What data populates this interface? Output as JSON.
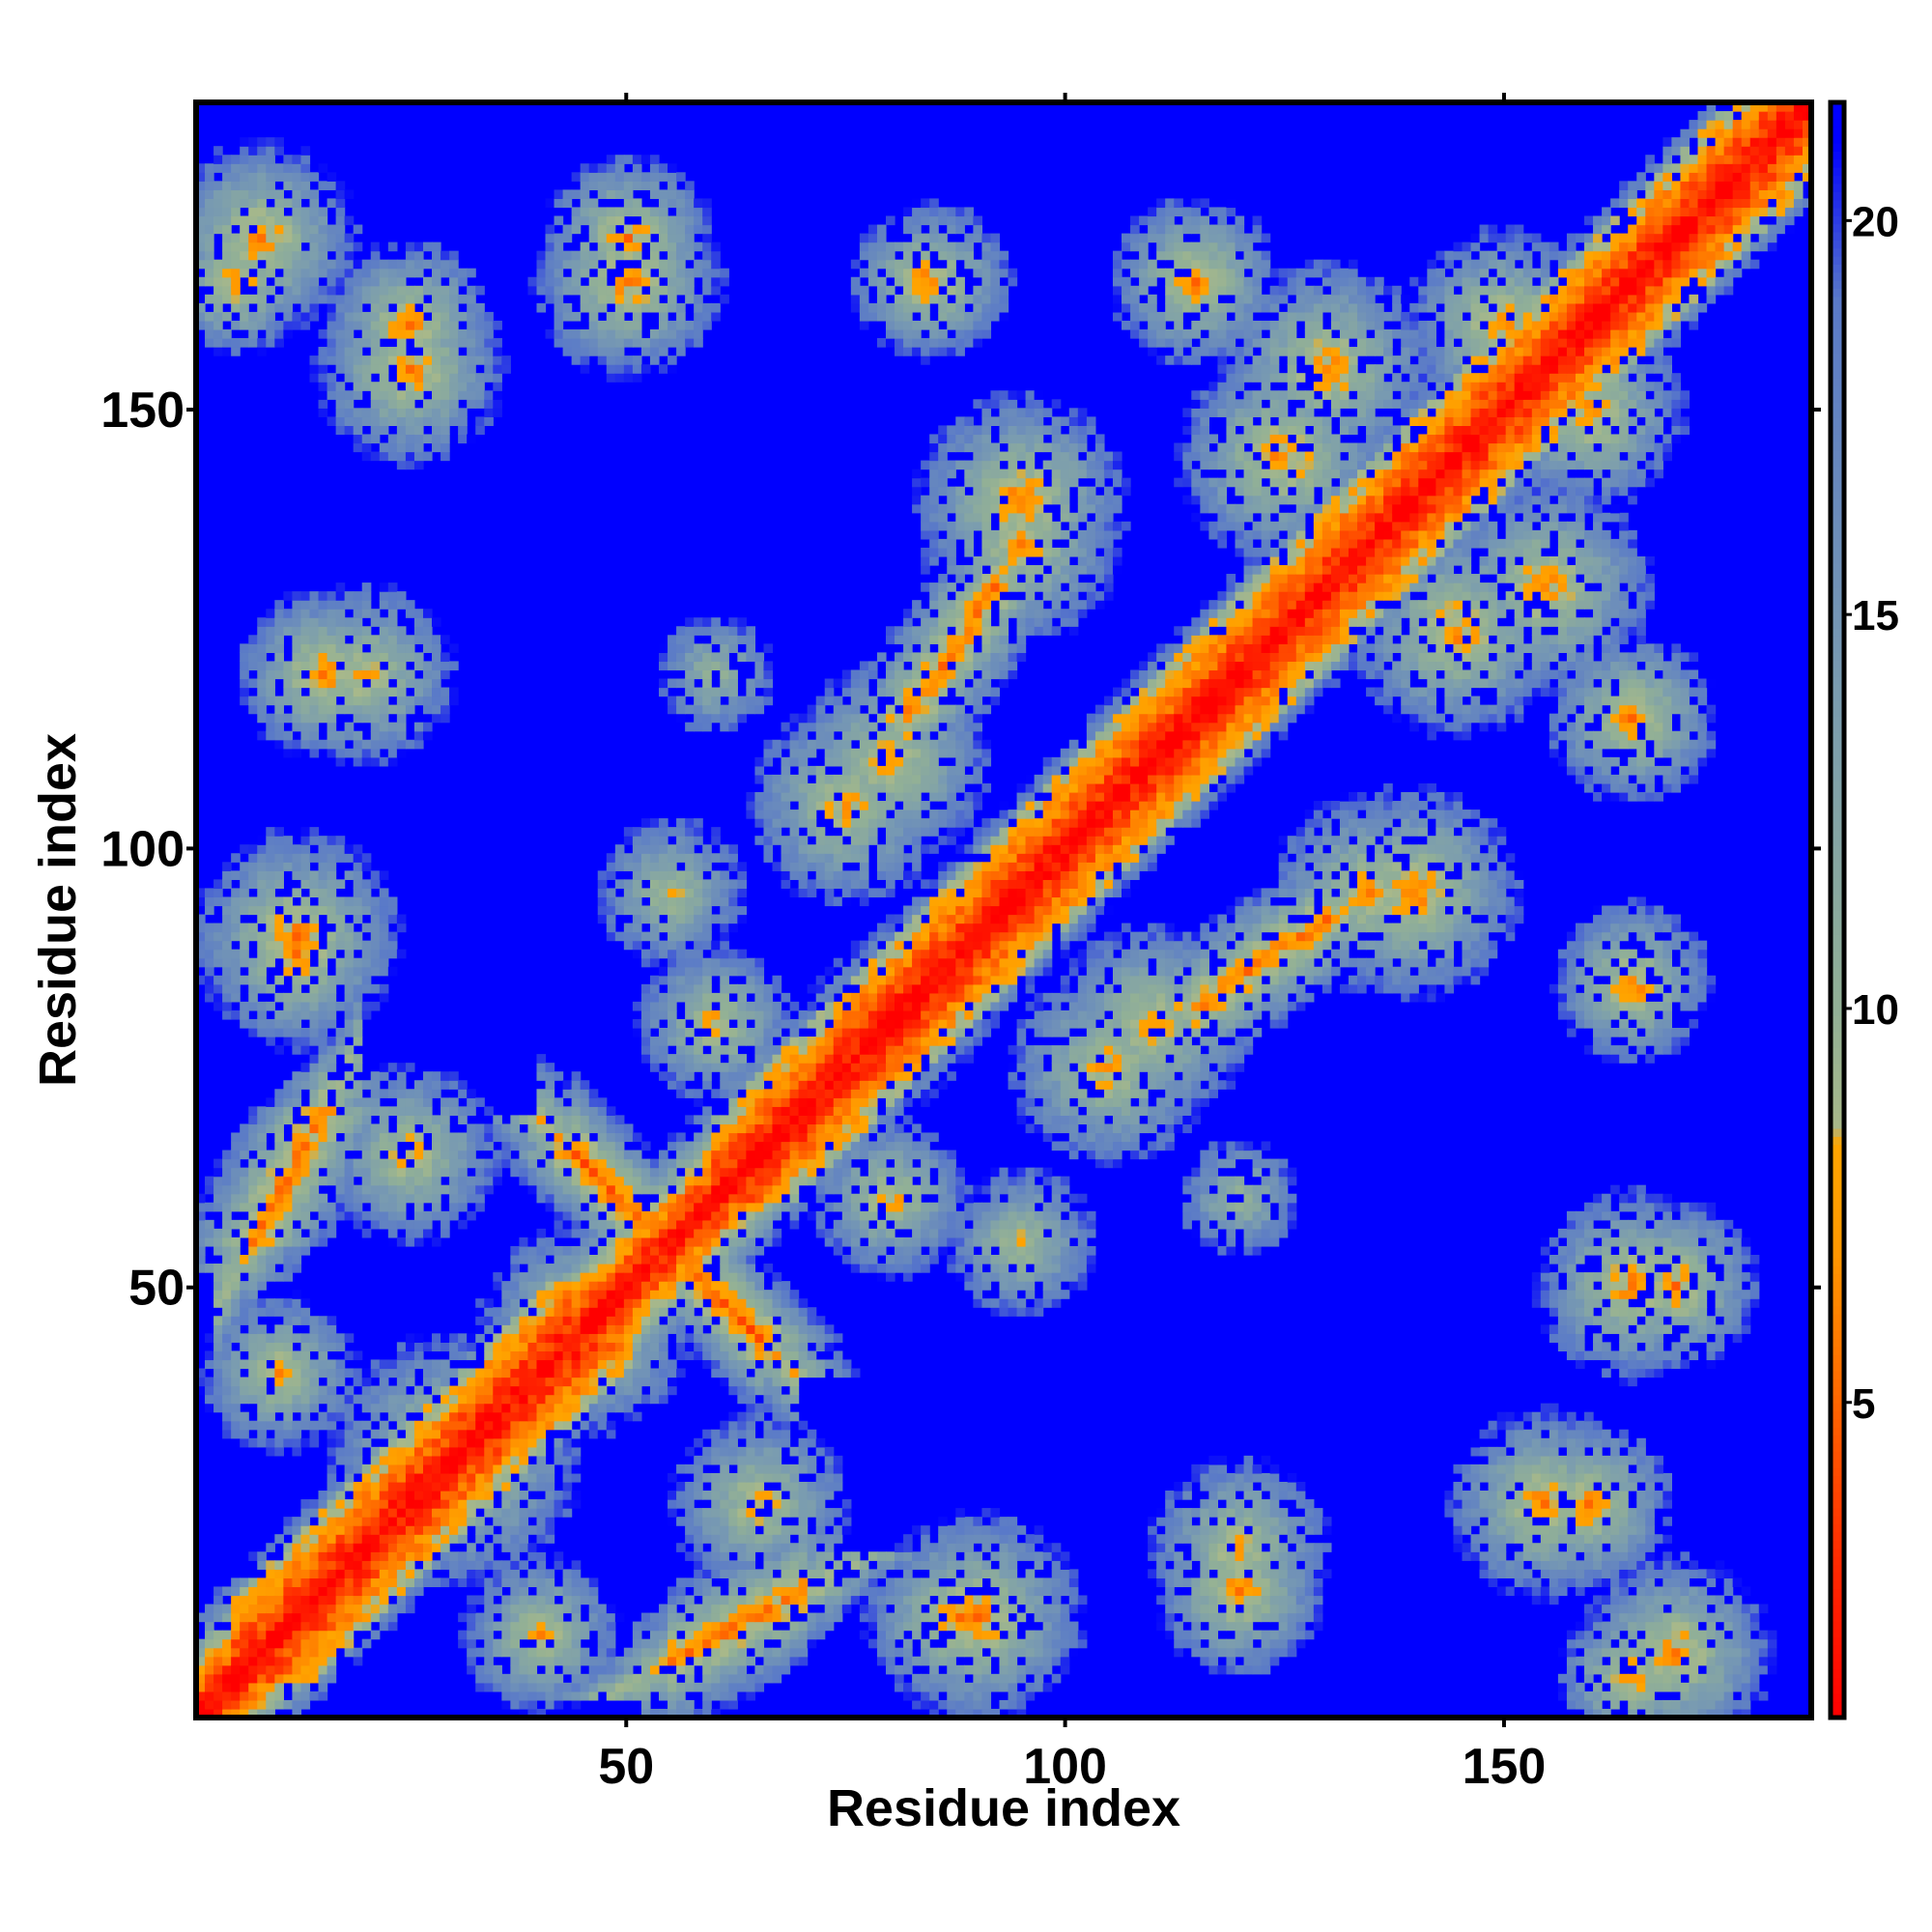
{
  "chart_data": {
    "type": "heatmap",
    "title": "",
    "xlabel": "Residue index",
    "ylabel": "Residue index",
    "n_residues": 185,
    "xlim": [
      1,
      185
    ],
    "ylim": [
      1,
      185
    ],
    "x_ticks": [
      50,
      100,
      150
    ],
    "y_ticks": [
      50,
      100,
      150
    ],
    "x_tick_labels": [
      "50",
      "100",
      "150"
    ],
    "y_tick_labels": [
      "50",
      "100",
      "150"
    ],
    "colorbar": {
      "range": [
        1,
        21.5
      ],
      "ticks": [
        5,
        10,
        15,
        20
      ],
      "tick_labels": [
        "5",
        "10",
        "15",
        "20"
      ],
      "stops": [
        {
          "value": 1,
          "color": "#ff0000"
        },
        {
          "value": 3,
          "color": "#ff2a00"
        },
        {
          "value": 5,
          "color": "#ff6600"
        },
        {
          "value": 7,
          "color": "#ff9900"
        },
        {
          "value": 8.3,
          "color": "#ffa500"
        },
        {
          "value": 8.5,
          "color": "#a8b88a"
        },
        {
          "value": 10,
          "color": "#92b096"
        },
        {
          "value": 14,
          "color": "#7a9cb0"
        },
        {
          "value": 19,
          "color": "#5a7ac8"
        },
        {
          "value": 21,
          "color": "#0000ff"
        }
      ]
    },
    "background_value": 21,
    "background_color": "#0000ff",
    "structure": {
      "diagonal": "distance ~1 at i=j, rising to ~8 by |i-j|=5 and ~14 by |i-j|=10",
      "helix_segment_1": [
        5,
        50
      ],
      "helix_segment_2": [
        60,
        185
      ],
      "beta_hairpin_contacts": [
        {
          "i_range": [
            44,
            65
          ],
          "j_range": [
            65,
            44
          ],
          "min_distance": 5
        },
        {
          "i_range": [
            7,
            15
          ],
          "j_range": [
            55,
            70
          ],
          "min_distance": 6
        },
        {
          "i_range": [
            52,
            68
          ],
          "j_range": [
            2,
            15
          ],
          "min_distance": 6
        },
        {
          "i_range": [
            80,
            92
          ],
          "j_range": [
            3,
            12
          ],
          "min_distance": 6
        },
        {
          "i_range": [
            115,
            135
          ],
          "j_range": [
            85,
            100
          ],
          "min_distance": 6
        },
        {
          "i_range": [
            82,
            92
          ],
          "j_range": [
            115,
            130
          ],
          "min_distance": 6
        },
        {
          "i_range": [
            140,
            152
          ],
          "j_range": [
            115,
            125
          ],
          "min_distance": 6
        },
        {
          "i_range": [
            150,
            165
          ],
          "j_range": [
            150,
            165
          ],
          "min_distance": 5
        }
      ],
      "contact_clusters": [
        {
          "center": [
            8,
            170
          ],
          "radius": 9,
          "min_distance": 6
        },
        {
          "center": [
            25,
            160
          ],
          "radius": 8,
          "min_distance": 6
        },
        {
          "center": [
            50,
            170
          ],
          "radius": 8,
          "min_distance": 6
        },
        {
          "center": [
            84,
            165
          ],
          "radius": 7,
          "min_distance": 6
        },
        {
          "center": [
            115,
            165
          ],
          "radius": 8,
          "min_distance": 6
        },
        {
          "center": [
            150,
            160
          ],
          "radius": 9,
          "min_distance": 6
        },
        {
          "center": [
            95,
            140
          ],
          "radius": 10,
          "min_distance": 6
        },
        {
          "center": [
            125,
            145
          ],
          "radius": 10,
          "min_distance": 6
        },
        {
          "center": [
            155,
            130
          ],
          "radius": 10,
          "min_distance": 6
        },
        {
          "center": [
            20,
            120
          ],
          "radius": 9,
          "min_distance": 7
        },
        {
          "center": [
            12,
            88
          ],
          "radius": 9,
          "min_distance": 6
        },
        {
          "center": [
            75,
            105
          ],
          "radius": 10,
          "min_distance": 7
        },
        {
          "center": [
            110,
            80
          ],
          "radius": 10,
          "min_distance": 7
        },
        {
          "center": [
            135,
            95
          ],
          "radius": 10,
          "min_distance": 7
        },
        {
          "center": [
            165,
            85
          ],
          "radius": 8,
          "min_distance": 7
        },
        {
          "center": [
            165,
            50
          ],
          "radius": 9,
          "min_distance": 6
        },
        {
          "center": [
            120,
            60
          ],
          "radius": 7,
          "min_distance": 9
        },
        {
          "center": [
            155,
            25
          ],
          "radius": 9,
          "min_distance": 6
        },
        {
          "center": [
            120,
            15
          ],
          "radius": 8,
          "min_distance": 6
        },
        {
          "center": [
            90,
            12
          ],
          "radius": 10,
          "min_distance": 6
        },
        {
          "center": [
            165,
            5
          ],
          "radius": 7,
          "min_distance": 6
        },
        {
          "center": [
            30,
            30
          ],
          "radius": 12,
          "min_distance": 6
        },
        {
          "center": [
            45,
            45
          ],
          "radius": 10,
          "min_distance": 6
        },
        {
          "center": [
            60,
            80
          ],
          "radius": 8,
          "min_distance": 7
        },
        {
          "center": [
            80,
            80
          ],
          "radius": 8,
          "min_distance": 6
        },
        {
          "center": [
            95,
            55
          ],
          "radius": 8,
          "min_distance": 8
        },
        {
          "center": [
            65,
            25
          ],
          "radius": 9,
          "min_distance": 7
        },
        {
          "center": [
            40,
            10
          ],
          "radius": 8,
          "min_distance": 7
        }
      ]
    }
  }
}
